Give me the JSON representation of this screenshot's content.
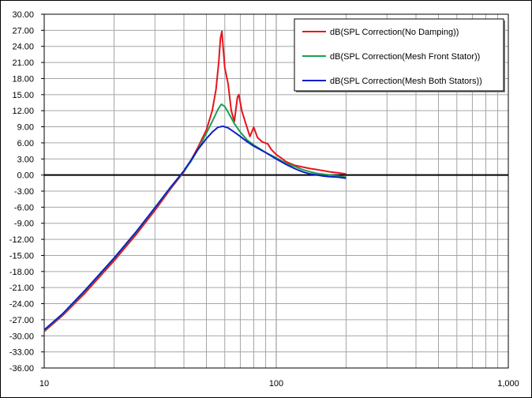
{
  "chart_data": {
    "type": "line",
    "title": "",
    "xlabel": "",
    "ylabel": "",
    "x_scale": "log",
    "xlim": [
      10,
      1000
    ],
    "ylim": [
      -36,
      30
    ],
    "y_tick_step": 3,
    "x_tick_labels": [
      "10",
      "100",
      "1,000"
    ],
    "y_tick_labels": [
      "30.00",
      "27.00",
      "24.00",
      "21.00",
      "18.00",
      "15.00",
      "12.00",
      "9.00",
      "6.00",
      "3.00",
      "0.00",
      "-3.00",
      "-6.00",
      "-9.00",
      "-12.00",
      "-15.00",
      "-18.00",
      "-21.00",
      "-24.00",
      "-27.00",
      "-30.00",
      "-33.00",
      "-36.00"
    ],
    "grid": true,
    "legend_position": "top-right",
    "series": [
      {
        "name": "dB(SPL Correction(No Damping))",
        "color": "#e8131b",
        "points": [
          [
            10,
            -29.2
          ],
          [
            12,
            -26.2
          ],
          [
            15,
            -22.0
          ],
          [
            20,
            -16.0
          ],
          [
            25,
            -11.0
          ],
          [
            30,
            -6.6
          ],
          [
            35,
            -2.6
          ],
          [
            40,
            0.6
          ],
          [
            43,
            2.8
          ],
          [
            46,
            5.2
          ],
          [
            50,
            8.4
          ],
          [
            53,
            12.0
          ],
          [
            55,
            16.0
          ],
          [
            56.5,
            21.0
          ],
          [
            57.5,
            25.5
          ],
          [
            58.3,
            26.8
          ],
          [
            59,
            24.0
          ],
          [
            60,
            20.0
          ],
          [
            62,
            17.0
          ],
          [
            64,
            12.0
          ],
          [
            66,
            10.0
          ],
          [
            68,
            14.5
          ],
          [
            69,
            15.0
          ],
          [
            71,
            12.0
          ],
          [
            74,
            9.5
          ],
          [
            77,
            7.2
          ],
          [
            80,
            8.9
          ],
          [
            83,
            7.0
          ],
          [
            87,
            6.2
          ],
          [
            92,
            5.8
          ],
          [
            95,
            4.8
          ],
          [
            100,
            3.8
          ],
          [
            105,
            3.2
          ],
          [
            110,
            2.5
          ],
          [
            120,
            1.8
          ],
          [
            130,
            1.5
          ],
          [
            140,
            1.2
          ],
          [
            150,
            1.0
          ],
          [
            160,
            0.8
          ],
          [
            170,
            0.6
          ],
          [
            185,
            0.4
          ],
          [
            200,
            0.2
          ]
        ]
      },
      {
        "name": "dB(SPL Correction(Mesh Front Stator))",
        "color": "#1aa053",
        "points": [
          [
            10,
            -29.0
          ],
          [
            12,
            -26.0
          ],
          [
            15,
            -21.6
          ],
          [
            20,
            -15.6
          ],
          [
            25,
            -10.6
          ],
          [
            30,
            -6.2
          ],
          [
            35,
            -2.4
          ],
          [
            40,
            0.7
          ],
          [
            43,
            2.6
          ],
          [
            46,
            4.8
          ],
          [
            50,
            7.8
          ],
          [
            53,
            10.0
          ],
          [
            56,
            12.2
          ],
          [
            58,
            13.2
          ],
          [
            60,
            12.8
          ],
          [
            63,
            11.2
          ],
          [
            66,
            9.6
          ],
          [
            70,
            8.0
          ],
          [
            75,
            6.5
          ],
          [
            80,
            5.6
          ],
          [
            90,
            4.2
          ],
          [
            100,
            3.2
          ],
          [
            110,
            2.2
          ],
          [
            120,
            1.6
          ],
          [
            130,
            1.0
          ],
          [
            140,
            0.6
          ],
          [
            150,
            0.3
          ],
          [
            170,
            0.0
          ],
          [
            185,
            -0.2
          ],
          [
            200,
            -0.4
          ]
        ]
      },
      {
        "name": "dB(SPL Correction(Mesh Both Stators))",
        "color": "#0f1ec8",
        "points": [
          [
            10,
            -28.9
          ],
          [
            12,
            -25.9
          ],
          [
            15,
            -21.5
          ],
          [
            20,
            -15.5
          ],
          [
            25,
            -10.5
          ],
          [
            30,
            -6.1
          ],
          [
            35,
            -2.3
          ],
          [
            40,
            0.8
          ],
          [
            43,
            2.8
          ],
          [
            46,
            4.8
          ],
          [
            50,
            6.8
          ],
          [
            53,
            8.0
          ],
          [
            56,
            8.9
          ],
          [
            59,
            9.1
          ],
          [
            62,
            8.8
          ],
          [
            66,
            8.0
          ],
          [
            70,
            7.2
          ],
          [
            75,
            6.2
          ],
          [
            80,
            5.4
          ],
          [
            90,
            4.2
          ],
          [
            100,
            3.0
          ],
          [
            110,
            2.0
          ],
          [
            120,
            1.2
          ],
          [
            130,
            0.6
          ],
          [
            140,
            0.2
          ],
          [
            150,
            0.0
          ],
          [
            160,
            -0.2
          ],
          [
            170,
            -0.3
          ],
          [
            185,
            -0.4
          ],
          [
            200,
            -0.6
          ]
        ]
      }
    ]
  }
}
